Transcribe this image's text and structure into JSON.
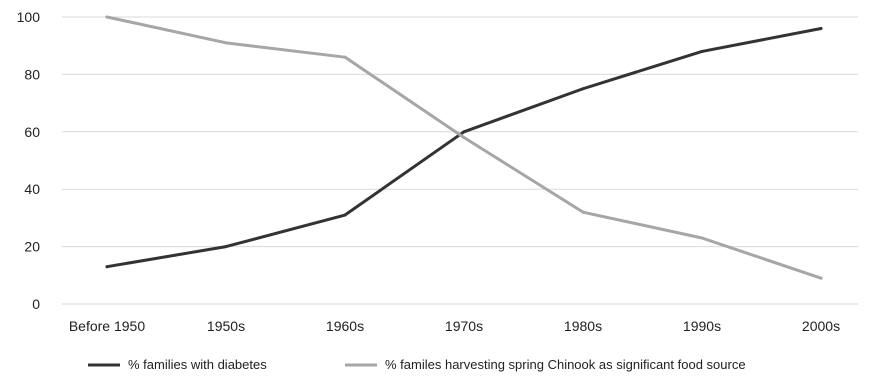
{
  "chart_data": {
    "type": "line",
    "title": "",
    "xlabel": "",
    "ylabel": "",
    "categories": [
      "Before 1950",
      "1950s",
      "1960s",
      "1970s",
      "1980s",
      "1990s",
      "2000s"
    ],
    "ylim": [
      0,
      100
    ],
    "yticks": [
      "0",
      "20",
      "40",
      "60",
      "80",
      "100"
    ],
    "grid": "horizontal",
    "legend_position": "bottom",
    "series": [
      {
        "name": "% families with diabetes",
        "color": "#333333",
        "values": [
          13,
          20,
          31,
          60,
          75,
          88,
          96
        ]
      },
      {
        "name": "% familes harvesting spring Chinook as significant food source",
        "color": "#a6a6a6",
        "values": [
          100,
          91,
          86,
          58,
          32,
          23,
          9
        ]
      }
    ]
  }
}
